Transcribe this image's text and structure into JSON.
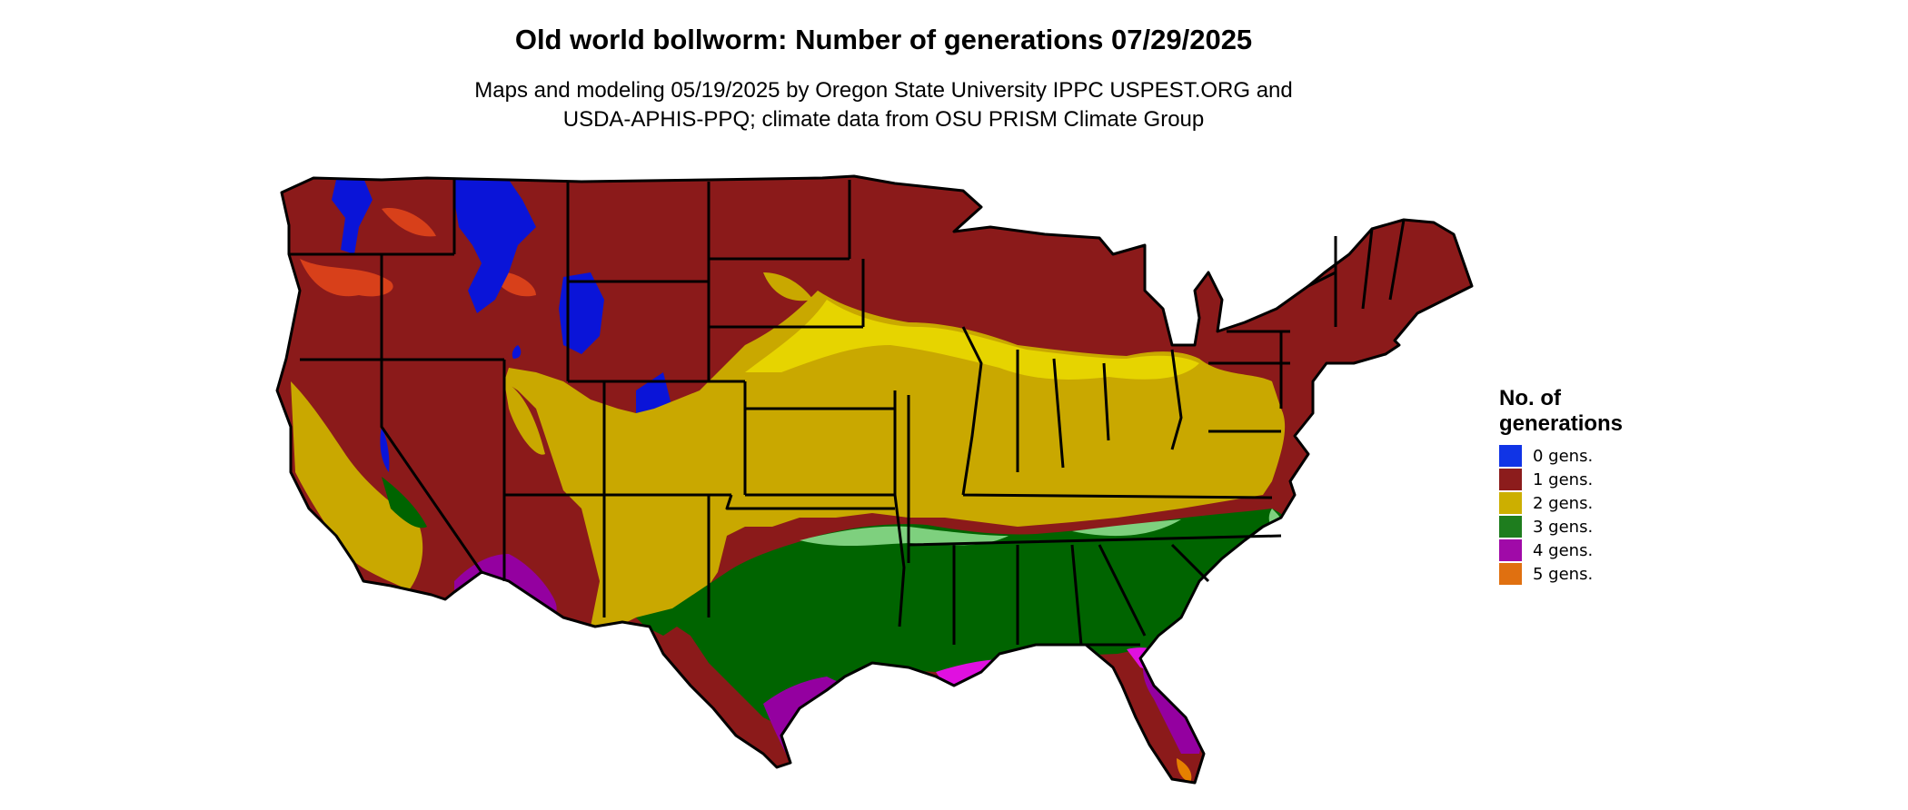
{
  "title": "Old world bollworm: Number of generations 07/29/2025",
  "subtitle_lines": [
    "Maps and modeling 05/19/2025 by Oregon State University IPPC USPEST.ORG and",
    "USDA-APHIS-PPQ; climate data from OSU PRISM Climate Group"
  ],
  "legend": {
    "title_lines": [
      "No. of",
      "generations"
    ],
    "items": [
      {
        "label": "0 gens.",
        "color": "#1034e6"
      },
      {
        "label": "1 gens.",
        "color": "#8c1c1c"
      },
      {
        "label": "2 gens.",
        "color": "#ccaf00"
      },
      {
        "label": "3 gens.",
        "color": "#1e7d1e"
      },
      {
        "label": "4 gens.",
        "color": "#a00aa8"
      },
      {
        "label": "5 gens.",
        "color": "#e07010"
      }
    ]
  },
  "map_colors": {
    "dark_red": "#8b1a1a",
    "orange_red": "#d8401a",
    "blue": "#0a14d8",
    "yellow": "#c9a800",
    "bright_yellow": "#e6d400",
    "green": "#006400",
    "light_green": "#7ed07e",
    "purple": "#9400a0",
    "magenta": "#e010e0",
    "orange": "#e68000",
    "border": "#000000"
  }
}
